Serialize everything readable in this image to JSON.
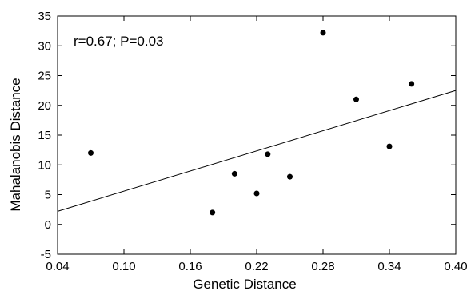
{
  "chart_data": {
    "type": "scatter",
    "title": "",
    "xlabel": "Genetic Distance",
    "ylabel": "Mahalanobis Distance",
    "annotation": "r=0.67; P=0.03",
    "xlim": [
      0.04,
      0.4
    ],
    "ylim": [
      -5,
      35
    ],
    "x_ticks": [
      0.04,
      0.1,
      0.16,
      0.22,
      0.28,
      0.34,
      0.4
    ],
    "x_tick_labels": [
      "0.04",
      "0.10",
      "0.16",
      "0.22",
      "0.28",
      "0.34",
      "0.40"
    ],
    "y_ticks": [
      -5,
      0,
      5,
      10,
      15,
      20,
      25,
      30,
      35
    ],
    "y_tick_labels": [
      "-5",
      "0",
      "5",
      "10",
      "15",
      "20",
      "25",
      "30",
      "35"
    ],
    "grid": false,
    "legend": "none",
    "series": [
      {
        "x": [
          0.07,
          0.18,
          0.2,
          0.22,
          0.23,
          0.25,
          0.28,
          0.31,
          0.34,
          0.36
        ],
        "y": [
          12.0,
          2.0,
          8.5,
          5.2,
          11.8,
          8.0,
          32.2,
          21.0,
          13.1,
          23.6
        ]
      }
    ],
    "fit_line": {
      "x": [
        0.04,
        0.4
      ],
      "y": [
        2.2,
        22.5
      ]
    },
    "colors": {
      "marker": "#000000",
      "line": "#000000",
      "axes": "#000000"
    }
  }
}
